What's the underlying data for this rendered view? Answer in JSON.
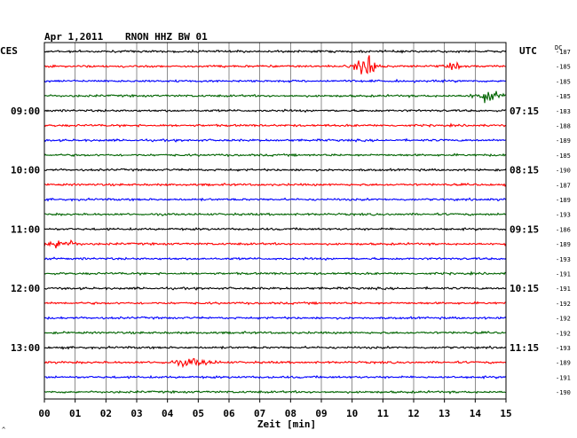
{
  "header": {
    "date": "Apr 1,2011",
    "station": "RNON HHZ BW 01"
  },
  "left_zone": "CES",
  "right_zone": "UTC",
  "dc_label": "DC",
  "footer_mark": "^",
  "colors": {
    "cycle": [
      "#000000",
      "#ff0000",
      "#0000ff",
      "#006400"
    ],
    "grid": "#000000"
  },
  "chart_data": {
    "type": "line",
    "xlabel": "Zeit [min]",
    "xlim": [
      0,
      15
    ],
    "x_ticks": [
      "00",
      "01",
      "02",
      "03",
      "04",
      "05",
      "06",
      "07",
      "08",
      "09",
      "10",
      "11",
      "12",
      "13",
      "14",
      "15"
    ],
    "rows": 24,
    "minutes_per_row": 15,
    "left_time_labels": [
      {
        "row": 4,
        "label": "09:00"
      },
      {
        "row": 8,
        "label": "10:00"
      },
      {
        "row": 12,
        "label": "11:00"
      },
      {
        "row": 16,
        "label": "12:00"
      },
      {
        "row": 20,
        "label": "13:00"
      }
    ],
    "right_time_labels": [
      {
        "row": 4,
        "label": "07:15"
      },
      {
        "row": 8,
        "label": "08:15"
      },
      {
        "row": 12,
        "label": "09:15"
      },
      {
        "row": 16,
        "label": "10:15"
      },
      {
        "row": 20,
        "label": "11:15"
      }
    ],
    "dc_offsets": [
      "-187",
      "-185",
      "-185",
      "-185",
      "-183",
      "-188",
      "-189",
      "-185",
      "-190",
      "-187",
      "-189",
      "-193",
      "-186",
      "-189",
      "-193",
      "-191",
      "-191",
      "-192",
      "-192",
      "-192",
      "-193",
      "-189",
      "-191",
      "-190"
    ],
    "events": [
      {
        "row": 1,
        "minute": 10.5,
        "amplitude": 3.0,
        "duration_min": 0.7
      },
      {
        "row": 1,
        "minute": 13.3,
        "amplitude": 0.7,
        "duration_min": 0.4
      },
      {
        "row": 3,
        "minute": 14.4,
        "amplitude": 1.0,
        "duration_min": 1.0
      },
      {
        "row": 13,
        "minute": 0.5,
        "amplitude": 1.1,
        "duration_min": 1.0
      },
      {
        "row": 21,
        "minute": 4.8,
        "amplitude": 0.7,
        "duration_min": 1.4
      }
    ]
  }
}
